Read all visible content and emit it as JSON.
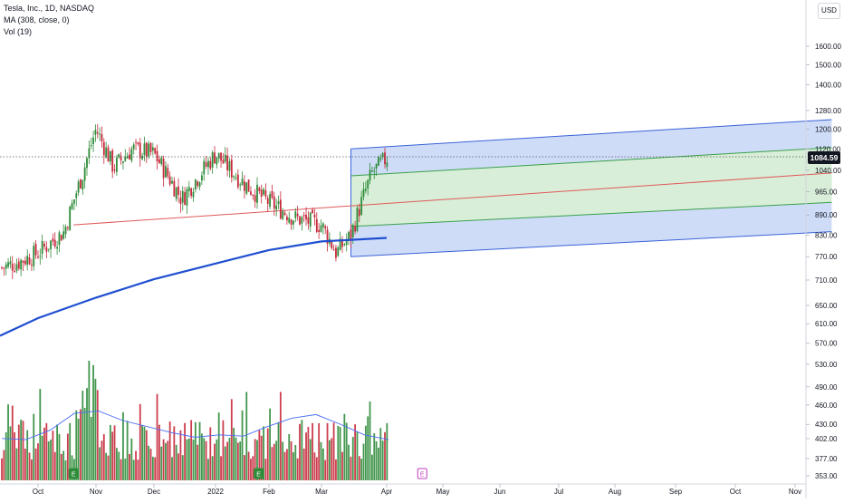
{
  "header": {
    "symbol_line": "Tesla, Inc., 1D, NASDAQ",
    "ma_line": "MA (308, close, 0)",
    "vol_line": "Vol (19)",
    "currency": "USD",
    "last_price": "1084.59"
  },
  "colors": {
    "up": "#2e8b38",
    "down": "#c7283a",
    "ma": "#1f4fd1",
    "vol_ma": "#4a6cf7",
    "pitchfork_outer_fill": "#c7d6f7",
    "pitchfork_inner_fill": "#d8eed8",
    "pitchfork_median": "#e05a5a",
    "pitchfork_outer_line": "#3a62d8",
    "pitchfork_inner_line": "#3aa04a",
    "earnings_marker": "#2e8b38",
    "earnings_marker_future": "#c23cc2"
  },
  "chart_data": {
    "type": "candlestick",
    "title": "Tesla, Inc., 1D, NASDAQ",
    "y_axis_ticks": [
      "1600.00",
      "1500.00",
      "1400.00",
      "1280.00",
      "1200.00",
      "1120.00",
      "1040.00",
      "965.00",
      "890.00",
      "830.00",
      "770.00",
      "710.00",
      "650.00",
      "610.00",
      "570.00",
      "530.00",
      "490.00",
      "460.00",
      "430.00",
      "402.00",
      "377.00",
      "353.00"
    ],
    "x_axis_ticks": [
      "Oct",
      "Nov",
      "Dec",
      "2022",
      "Feb",
      "Mar",
      "Apr",
      "May",
      "Jun",
      "Jul",
      "Aug",
      "Sep",
      "Oct",
      "Nov"
    ],
    "y_scale": "log",
    "last_price": 1084.59,
    "earnings_markers": [
      {
        "label": "E",
        "date": "2021-10-20"
      },
      {
        "label": "E",
        "date": "2022-01-26"
      },
      {
        "label": "E",
        "date": "2022-04-20"
      }
    ],
    "moving_average": {
      "name": "MA (308, close, 0)",
      "points": [
        [
          "2021-09-01",
          585
        ],
        [
          "2021-10-01",
          622
        ],
        [
          "2021-11-01",
          668
        ],
        [
          "2021-12-01",
          712
        ],
        [
          "2022-01-01",
          752
        ],
        [
          "2022-02-01",
          788
        ],
        [
          "2022-03-01",
          812
        ],
        [
          "2022-04-01",
          822
        ]
      ]
    },
    "price_path": [
      [
        "2021-09-01",
        740
      ],
      [
        "2021-09-15",
        755
      ],
      [
        "2021-10-01",
        780
      ],
      [
        "2021-10-15",
        840
      ],
      [
        "2021-10-25",
        1030
      ],
      [
        "2021-11-01",
        1200
      ],
      [
        "2021-11-10",
        1050
      ],
      [
        "2021-11-20",
        1120
      ],
      [
        "2021-12-01",
        1100
      ],
      [
        "2021-12-15",
        940
      ],
      [
        "2022-01-01",
        1100
      ],
      [
        "2022-01-10",
        1040
      ],
      [
        "2022-01-20",
        980
      ],
      [
        "2022-02-01",
        930
      ],
      [
        "2022-02-15",
        880
      ],
      [
        "2022-03-01",
        860
      ],
      [
        "2022-03-08",
        780
      ],
      [
        "2022-03-15",
        830
      ],
      [
        "2022-03-25",
        1030
      ],
      [
        "2022-04-01",
        1084.59
      ]
    ],
    "pitchfork": {
      "start": [
        "2021-10-20",
        860
      ],
      "handle": [
        "2022-03-15",
        1120,
        770
      ],
      "end_date": "2022-11-20",
      "median_end": 1030,
      "upper_end": 1240,
      "lower_end": 840,
      "inner_upper_end": 1125,
      "inner_lower_end": 930
    },
    "volume": {
      "name": "Vol (19)",
      "ma_values": [
        0.35,
        0.34,
        0.42,
        0.56,
        0.58,
        0.5,
        0.45,
        0.4,
        0.36,
        0.38,
        0.37,
        0.45,
        0.52,
        0.55,
        0.47,
        0.38,
        0.34
      ]
    }
  }
}
